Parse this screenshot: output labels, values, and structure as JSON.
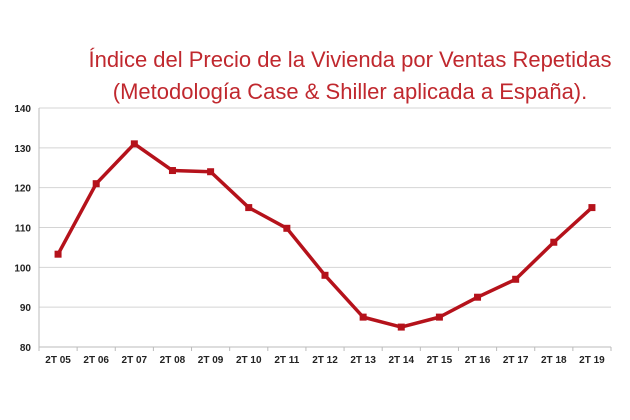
{
  "chart_data": {
    "type": "line",
    "title": "Índice del Precio de la Vivienda por Ventas Repetidas",
    "subtitle": "(Metodología Case & Shiller aplicada a España).",
    "xlabel": "",
    "ylabel": "",
    "categories": [
      "2T 05",
      "2T 06",
      "2T 07",
      "2T 08",
      "2T 09",
      "2T 10",
      "2T 11",
      "2T 12",
      "2T 13",
      "2T 14",
      "2T 15",
      "2T 16",
      "2T 17",
      "2T 18",
      "2T 19"
    ],
    "values": [
      103.3,
      121,
      131,
      124.3,
      124,
      115,
      109.8,
      98,
      87.5,
      85,
      87.5,
      92.5,
      97,
      106.3,
      115
    ],
    "ylim": [
      80,
      140
    ],
    "yticks": [
      80,
      90,
      100,
      110,
      120,
      130,
      140
    ],
    "grid": true,
    "legend": "none",
    "line_color": "#b5121b",
    "title_color": "#c0282e"
  }
}
